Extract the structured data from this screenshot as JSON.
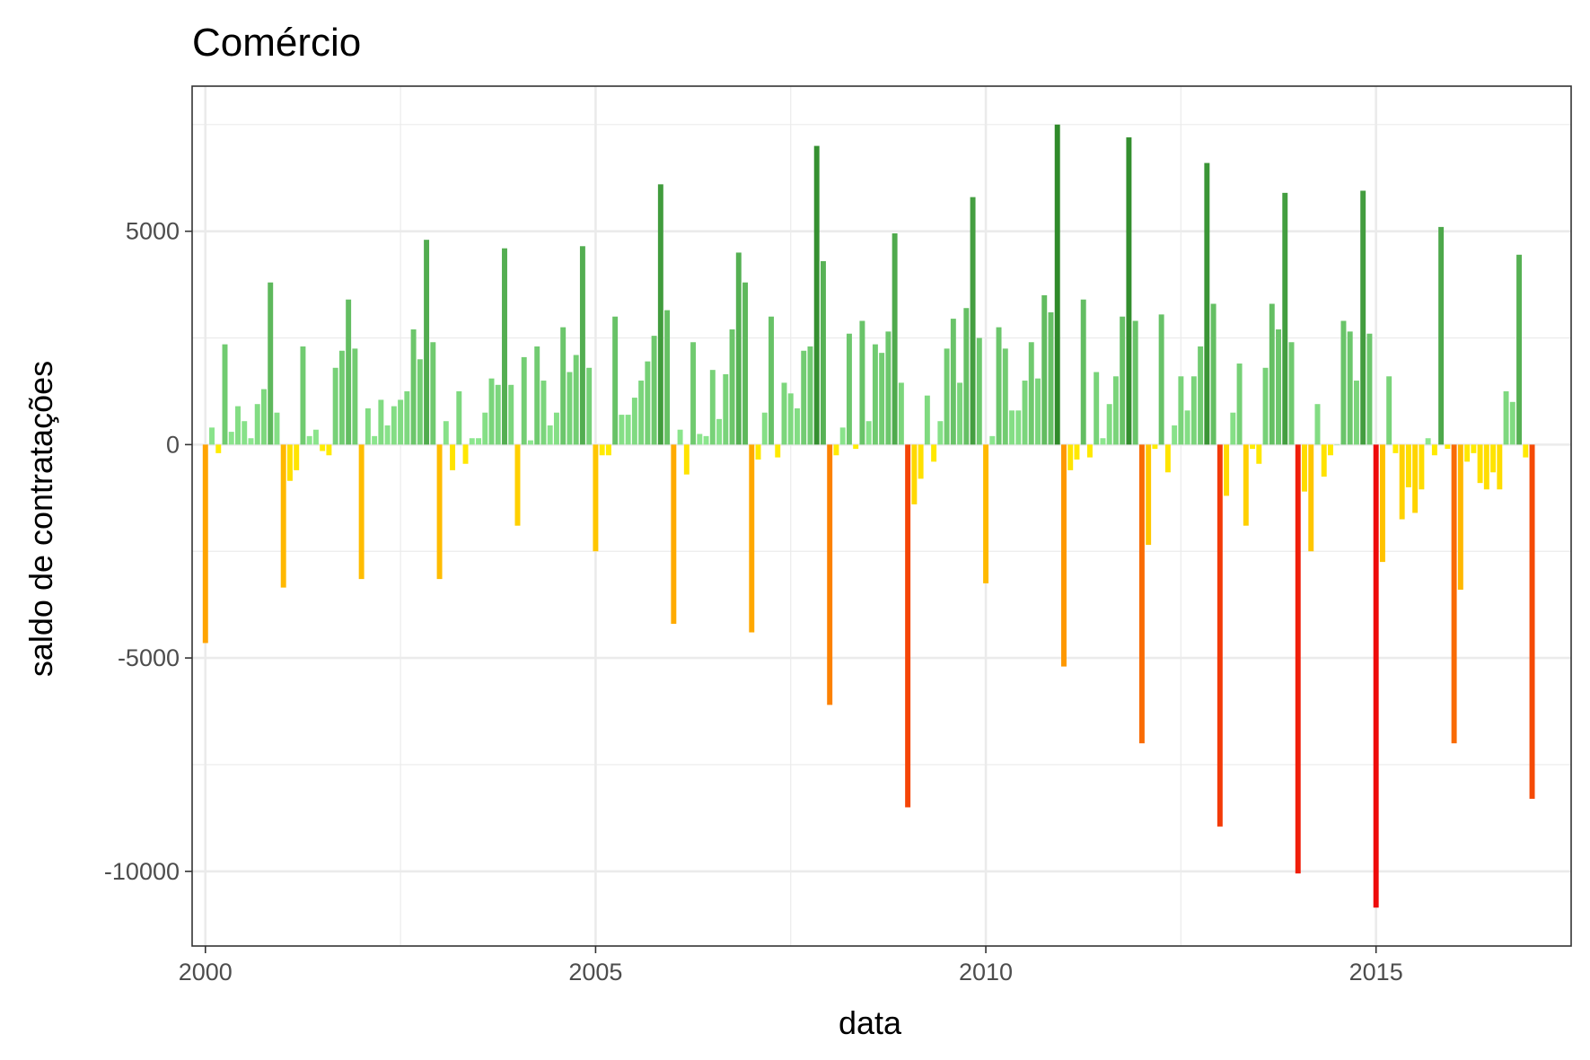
{
  "chart_data": {
    "type": "bar",
    "title": "Comércio",
    "xlabel": "data",
    "ylabel": "saldo de contratações",
    "xlim": [
      1999.83,
      2017.5
    ],
    "ylim": [
      -11750,
      8400
    ],
    "x_ticks": [
      2000,
      2005,
      2010,
      2015
    ],
    "x_tick_labels": [
      "2000",
      "2005",
      "2010",
      "2015"
    ],
    "y_ticks": [
      5000,
      0,
      -5000,
      -10000
    ],
    "y_tick_labels": [
      "5000",
      "0",
      "-5000",
      "-10000"
    ],
    "grid": true,
    "legend": "none",
    "start_year": 2000,
    "start_month": 1,
    "values": [
      -4650,
      400,
      -200,
      2350,
      300,
      900,
      550,
      150,
      950,
      1300,
      3800,
      750,
      -3350,
      -850,
      -600,
      2300,
      200,
      350,
      -150,
      -250,
      1800,
      2200,
      3400,
      2250,
      -3150,
      850,
      200,
      1050,
      450,
      900,
      1050,
      1250,
      2700,
      2000,
      4800,
      2400,
      -3150,
      550,
      -600,
      1250,
      -450,
      150,
      150,
      750,
      1550,
      1400,
      4600,
      1400,
      -1900,
      2050,
      100,
      2300,
      1500,
      450,
      750,
      2750,
      1700,
      2100,
      4650,
      1800,
      -2500,
      -250,
      -250,
      3000,
      700,
      700,
      1100,
      1500,
      1950,
      2550,
      6100,
      3150,
      -4200,
      350,
      -700,
      2400,
      250,
      200,
      1750,
      600,
      1650,
      2700,
      4500,
      3800,
      -4400,
      -350,
      750,
      3000,
      -300,
      1450,
      1200,
      850,
      2200,
      2300,
      7000,
      4300,
      -6100,
      -250,
      400,
      2600,
      -100,
      2900,
      550,
      2350,
      2150,
      2650,
      4950,
      1450,
      -8500,
      -1400,
      -800,
      1150,
      -400,
      550,
      2250,
      2950,
      1450,
      3200,
      5800,
      2500,
      -3250,
      200,
      2750,
      2250,
      800,
      800,
      1500,
      2400,
      1550,
      3500,
      3100,
      7500,
      -5200,
      -600,
      -350,
      3400,
      -300,
      1700,
      150,
      950,
      1600,
      3000,
      7200,
      2900,
      -7000,
      -2350,
      -100,
      3050,
      -650,
      450,
      1600,
      800,
      1600,
      2300,
      6600,
      3300,
      -8950,
      -1200,
      750,
      1900,
      -1900,
      -100,
      -450,
      1800,
      3300,
      2700,
      5900,
      2400,
      -10050,
      -1100,
      -2500,
      950,
      -750,
      -250,
      0,
      2900,
      2650,
      1500,
      5950,
      2600,
      -10850,
      -2750,
      1600,
      -200,
      -1750,
      -1000,
      -1600,
      -1050,
      150,
      -250,
      5100,
      -100,
      -7000,
      -3400,
      -400,
      -200,
      -900,
      -1050,
      -650,
      -1050,
      1250,
      1000,
      4450,
      -300,
      -8300
    ]
  }
}
